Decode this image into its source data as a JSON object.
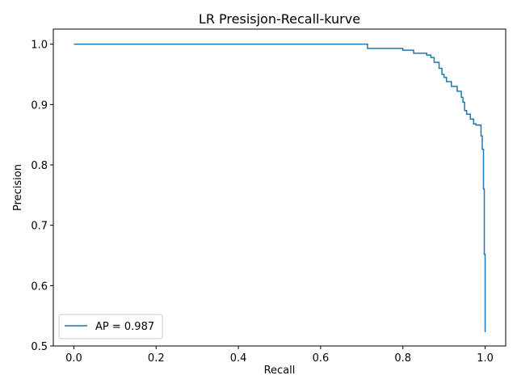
{
  "chart_data": {
    "type": "line",
    "title": "LR Presisjon-Recall-kurve",
    "xlabel": "Recall",
    "ylabel": "Precision",
    "xlim": [
      -0.05,
      1.05
    ],
    "ylim": [
      0.5,
      1.025
    ],
    "x_ticks": [
      0.0,
      0.2,
      0.4,
      0.6,
      0.8,
      1.0
    ],
    "x_tick_labels": [
      "0.0",
      "0.2",
      "0.4",
      "0.6",
      "0.8",
      "1.0"
    ],
    "y_ticks": [
      0.5,
      0.6,
      0.7,
      0.8,
      0.9,
      1.0
    ],
    "y_tick_labels": [
      "0.5",
      "0.6",
      "0.7",
      "0.8",
      "0.9",
      "1.0"
    ],
    "grid": false,
    "legend": {
      "placement": "lower-left"
    },
    "series": [
      {
        "name": "AP = 0.987",
        "color": "#1f77b4",
        "drawstyle": "steps-post",
        "recall": [
          0.0,
          0.714,
          0.714,
          0.8,
          0.8,
          0.826,
          0.826,
          0.858,
          0.858,
          0.868,
          0.868,
          0.876,
          0.876,
          0.888,
          0.888,
          0.895,
          0.895,
          0.9,
          0.9,
          0.906,
          0.906,
          0.918,
          0.918,
          0.932,
          0.932,
          0.942,
          0.942,
          0.946,
          0.946,
          0.95,
          0.95,
          0.955,
          0.955,
          0.964,
          0.964,
          0.972,
          0.972,
          0.978,
          0.978,
          0.99,
          0.99,
          0.993,
          0.993,
          0.996,
          0.996,
          0.998,
          0.998,
          1.0,
          1.0
        ],
        "precision": [
          1.0,
          1.0,
          0.993,
          0.993,
          0.99,
          0.99,
          0.985,
          0.985,
          0.982,
          0.982,
          0.978,
          0.978,
          0.97,
          0.97,
          0.96,
          0.96,
          0.95,
          0.95,
          0.945,
          0.945,
          0.938,
          0.938,
          0.93,
          0.93,
          0.922,
          0.922,
          0.912,
          0.912,
          0.904,
          0.904,
          0.89,
          0.89,
          0.884,
          0.884,
          0.876,
          0.876,
          0.868,
          0.868,
          0.866,
          0.866,
          0.848,
          0.848,
          0.826,
          0.826,
          0.76,
          0.76,
          0.652,
          0.652,
          0.523
        ]
      }
    ]
  }
}
